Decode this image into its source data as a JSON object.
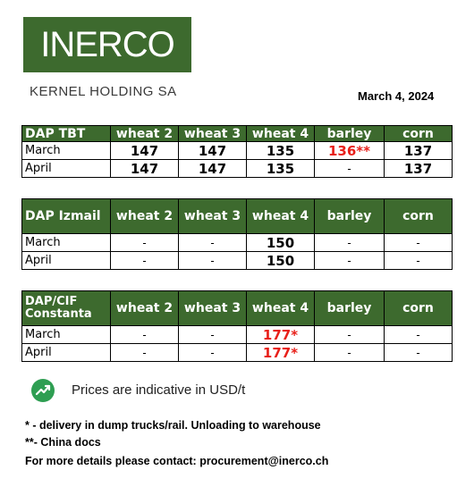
{
  "header": {
    "logo_text": "INERCO",
    "company": "KERNEL HOLDING SA",
    "date": "March 4, 2024",
    "brand_color": "#3d6a2e",
    "highlight_color": "#e8201a"
  },
  "columns": [
    "wheat 2",
    "wheat 3",
    "wheat 4",
    "barley",
    "corn"
  ],
  "tables": [
    {
      "title": "DAP TBT",
      "rows": [
        {
          "label": "March",
          "values": [
            "147",
            "147",
            "135",
            "136**",
            "137"
          ]
        },
        {
          "label": "April",
          "values": [
            "147",
            "147",
            "135",
            "-",
            "137"
          ]
        }
      ]
    },
    {
      "title": "DAP Izmail",
      "rows": [
        {
          "label": "March",
          "values": [
            "-",
            "-",
            "150",
            "-",
            "-"
          ]
        },
        {
          "label": "April",
          "values": [
            "-",
            "-",
            "150",
            "-",
            "-"
          ]
        }
      ]
    },
    {
      "title_line1": "DAP/CIF",
      "title_line2": "Constanta",
      "rows": [
        {
          "label": "March",
          "values": [
            "-",
            "-",
            "177*",
            "-",
            "-"
          ]
        },
        {
          "label": "April",
          "values": [
            "-",
            "-",
            "177*",
            "-",
            "-"
          ]
        }
      ]
    }
  ],
  "note": {
    "icon": "chart-up-icon",
    "text": "Prices are indicative  in USD/t"
  },
  "footnotes": {
    "star": "* - delivery in dump trucks/rail. Unloading to warehouse",
    "double_star": "**- China docs",
    "contact": "For more details please contact: procurement@inerco.ch"
  }
}
